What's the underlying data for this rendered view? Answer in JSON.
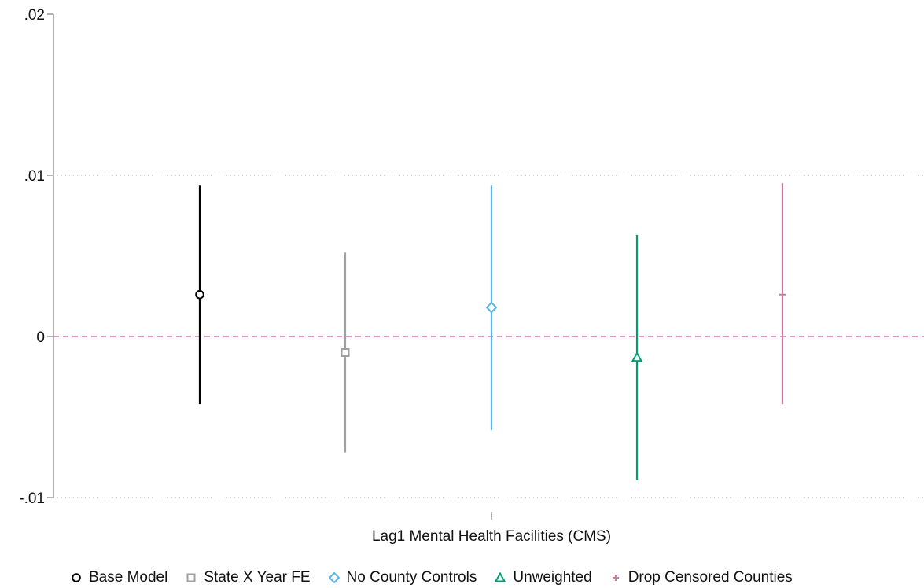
{
  "chart_data": {
    "type": "scatter",
    "subtype": "coefficient-plot-with-confidence-intervals",
    "title": "",
    "xlabel": "Lag1 Mental Health Facilities (CMS)",
    "ylabel": "",
    "ylim": [
      -0.01,
      0.02
    ],
    "yticks": [
      {
        "value": -0.01,
        "label": "-.01"
      },
      {
        "value": 0,
        "label": "0"
      },
      {
        "value": 0.01,
        "label": ".01"
      },
      {
        "value": 0.02,
        "label": ".02"
      }
    ],
    "grid": "dotted horizontal lines at .01 and -.01",
    "reference_line": {
      "y": 0,
      "style": "dashed",
      "color": "#cc79a7"
    },
    "legend_position": "bottom",
    "series": [
      {
        "name": "Base Model",
        "estimate": 0.0026,
        "ci": [
          -0.0042,
          0.0094
        ],
        "marker": "circle",
        "color": "#000000"
      },
      {
        "name": "State X Year FE",
        "estimate": -0.001,
        "ci": [
          -0.0072,
          0.0052
        ],
        "marker": "square",
        "color": "#a0a0a0"
      },
      {
        "name": "No County Controls",
        "estimate": 0.0018,
        "ci": [
          -0.0058,
          0.0094
        ],
        "marker": "diamond",
        "color": "#56b4e9"
      },
      {
        "name": "Unweighted",
        "estimate": -0.0013,
        "ci": [
          -0.0089,
          0.0063
        ],
        "marker": "triangle",
        "color": "#009e73"
      },
      {
        "name": "Drop Censored Counties",
        "estimate": 0.0026,
        "ci": [
          -0.0042,
          0.0095
        ],
        "marker": "plus",
        "color": "#cc79a7"
      }
    ]
  }
}
